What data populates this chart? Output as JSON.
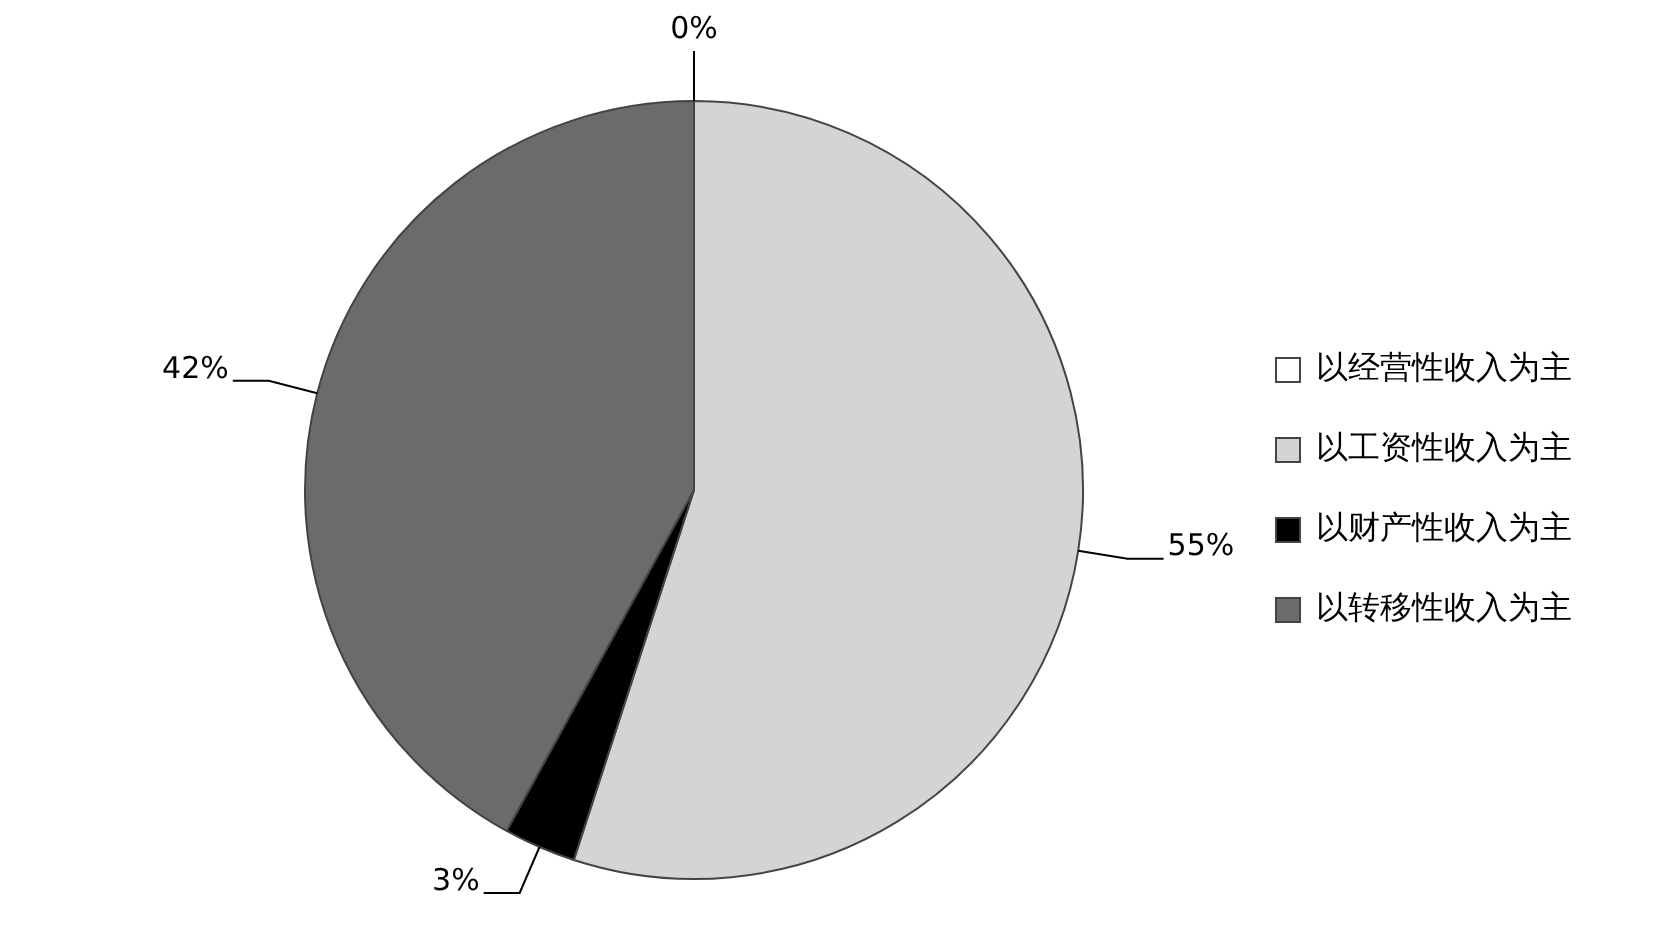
{
  "chart_data": {
    "type": "pie",
    "categories": [
      "以经营性收入为主",
      "以工资性收入为主",
      "以财产性收入为主",
      "以转移性收入为主"
    ],
    "values": [
      0,
      55,
      3,
      42
    ],
    "colors": [
      "#ffffff",
      "#d4d4d4",
      "#000000",
      "#6b6b6b"
    ],
    "value_labels": [
      "0%",
      "55%",
      "3%",
      "42%"
    ],
    "legend": "right"
  }
}
